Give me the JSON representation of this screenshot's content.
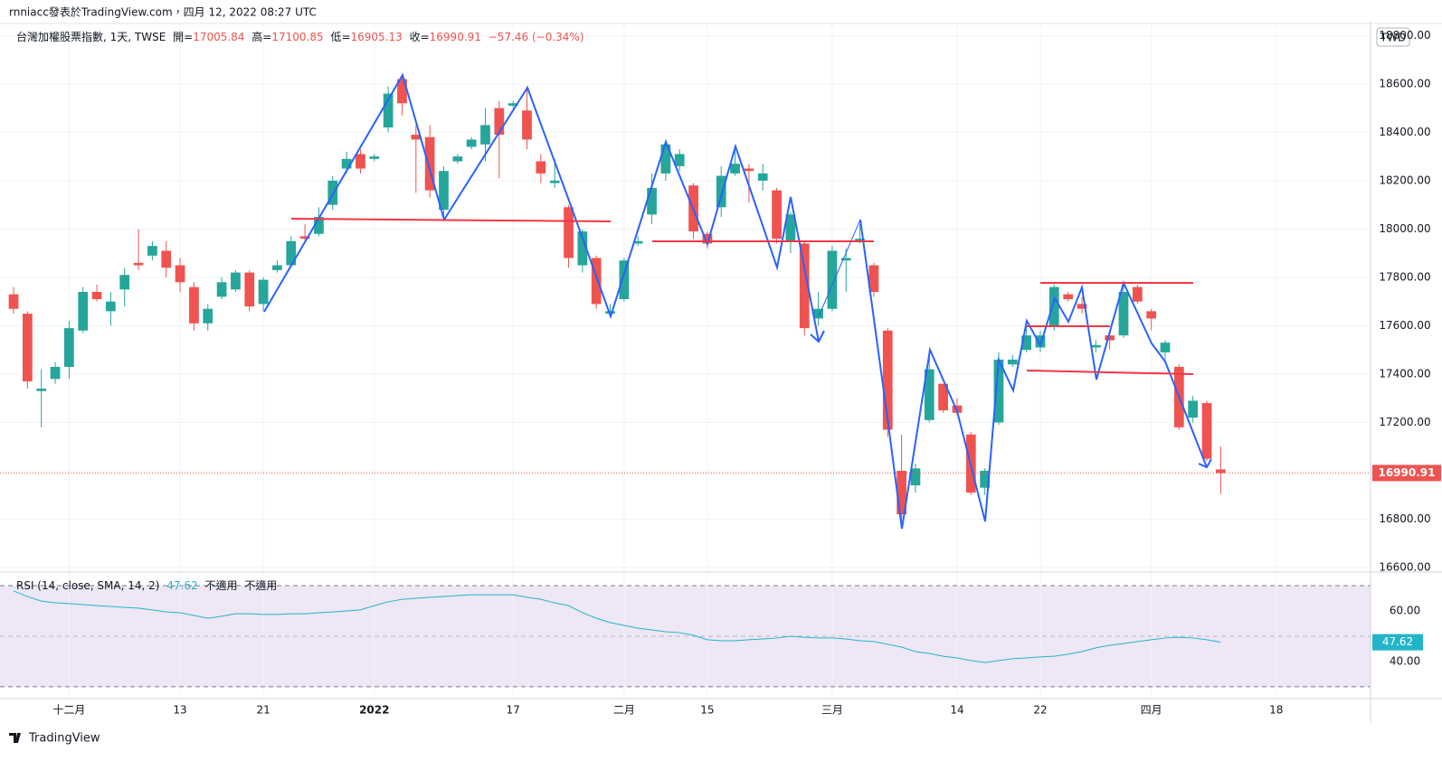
{
  "page": {
    "header": "rnniacc發表於TradingView.com，四月 12, 2022 08:27 UTC",
    "logo": "TradingView"
  },
  "chart_data": [
    {
      "type": "candlestick",
      "title": "台灣加權股票指數, 1天, TWSE",
      "ohlc_labels": [
        "開=",
        "高=",
        "低=",
        "收="
      ],
      "change_label": "−57.46 (−0.34%)",
      "currency": "TWD",
      "up_color": "#26a69a",
      "down_color": "#ef5350",
      "open": [
        17730,
        17650,
        17330,
        17380,
        17430,
        17580,
        17740,
        17660,
        17750,
        17860,
        17890,
        17910,
        17850,
        17760,
        17610,
        17720,
        17750,
        17820,
        17690,
        17830,
        17850,
        17970,
        17980,
        18100,
        18250,
        18310,
        18290,
        18420,
        18620,
        18390,
        18380,
        18080,
        18280,
        18340,
        18350,
        18500,
        18510,
        18490,
        18280,
        18190,
        18090,
        17850,
        17880,
        17650,
        17710,
        17940,
        18060,
        18230,
        18260,
        18180,
        17980,
        18090,
        18230,
        18250,
        18200,
        18160,
        17950,
        17940,
        17630,
        17670,
        17870,
        17950,
        17850,
        17580,
        17000,
        16940,
        17210,
        17360,
        17270,
        17150,
        16930,
        17200,
        17440,
        17500,
        17510,
        17600,
        17730,
        17690,
        17510,
        17560,
        17560,
        17760,
        17660,
        17490,
        17430,
        17220,
        17280,
        17005.84
      ],
      "high": [
        17760,
        17660,
        17420,
        17450,
        17620,
        17760,
        17770,
        17740,
        17840,
        18000,
        17950,
        17950,
        17880,
        17780,
        17690,
        17800,
        17830,
        17830,
        17800,
        17870,
        17970,
        18020,
        18090,
        18220,
        18320,
        18330,
        18310,
        18590,
        18630,
        18430,
        18430,
        18260,
        18310,
        18380,
        18500,
        18530,
        18530,
        18590,
        18310,
        18290,
        18100,
        18000,
        17890,
        17690,
        17880,
        17970,
        18230,
        18370,
        18330,
        18190,
        17990,
        18260,
        18340,
        18270,
        18270,
        18170,
        18070,
        17950,
        17740,
        17930,
        17920,
        18020,
        17860,
        17590,
        17150,
        17030,
        17490,
        17360,
        17300,
        17160,
        17010,
        17490,
        17480,
        17600,
        17580,
        17770,
        17740,
        17720,
        17540,
        17570,
        17770,
        17770,
        17670,
        17540,
        17440,
        17310,
        17290,
        17100.85
      ],
      "low": [
        17650,
        17340,
        17180,
        17360,
        17380,
        17570,
        17700,
        17600,
        17680,
        17830,
        17870,
        17800,
        17740,
        17580,
        17580,
        17710,
        17740,
        17660,
        17660,
        17820,
        17840,
        17950,
        17970,
        18080,
        18230,
        18230,
        18280,
        18400,
        18470,
        18150,
        18130,
        18040,
        18270,
        18330,
        18280,
        18210,
        18500,
        18330,
        18190,
        18170,
        17840,
        17820,
        17670,
        17640,
        17700,
        17930,
        18020,
        18200,
        18240,
        17960,
        17920,
        18050,
        18220,
        18110,
        18160,
        17940,
        17900,
        17560,
        17600,
        17660,
        17740,
        17940,
        17720,
        17140,
        16760,
        16910,
        17200,
        17240,
        17230,
        16900,
        16900,
        17190,
        17430,
        17490,
        17490,
        17580,
        17700,
        17650,
        17490,
        17500,
        17550,
        17690,
        17580,
        17460,
        17170,
        17200,
        17040,
        16905.13
      ],
      "close": [
        17670,
        17370,
        17340,
        17430,
        17590,
        17740,
        17710,
        17700,
        17810,
        17850,
        17930,
        17840,
        17780,
        17610,
        17670,
        17780,
        17820,
        17680,
        17790,
        17850,
        17950,
        17960,
        18050,
        18200,
        18290,
        18250,
        18300,
        18560,
        18520,
        18370,
        18160,
        18240,
        18300,
        18370,
        18430,
        18390,
        18520,
        18370,
        18230,
        18200,
        17880,
        17990,
        17690,
        17660,
        17870,
        17950,
        18170,
        18350,
        18310,
        17990,
        17940,
        18220,
        18270,
        18240,
        18230,
        17960,
        18060,
        17590,
        17670,
        17910,
        17880,
        17960,
        17740,
        17170,
        16820,
        17010,
        17420,
        17250,
        17240,
        16910,
        17000,
        17460,
        17460,
        17560,
        17560,
        17760,
        17710,
        17670,
        17520,
        17540,
        17740,
        17700,
        17630,
        17530,
        17180,
        17290,
        17050,
        16990.91
      ],
      "xlim": [
        -0.98,
        97.8
      ],
      "xticks": [
        {
          "value": 4,
          "label": "十二月"
        },
        {
          "value": 12,
          "label": "13"
        },
        {
          "value": 18,
          "label": "21"
        },
        {
          "value": 26,
          "label": "2022"
        },
        {
          "value": 36,
          "label": "17"
        },
        {
          "value": 44,
          "label": "二月"
        },
        {
          "value": 50,
          "label": "15"
        },
        {
          "value": 59,
          "label": "三月"
        },
        {
          "value": 68,
          "label": "14"
        },
        {
          "value": 74,
          "label": "22"
        },
        {
          "value": 82,
          "label": "四月"
        },
        {
          "value": 91,
          "label": "18"
        }
      ],
      "ylim": [
        16585,
        18835
      ],
      "yticks": [
        {
          "value": 16600,
          "label": "16600.00"
        },
        {
          "value": 16800,
          "label": "16800.00"
        },
        {
          "value": 17000,
          "label": "17000.00"
        },
        {
          "value": 17200,
          "label": "17200.00"
        },
        {
          "value": 17400,
          "label": "17400.00"
        },
        {
          "value": 17600,
          "label": "17600.00"
        },
        {
          "value": 17800,
          "label": "17800.00"
        },
        {
          "value": 18000,
          "label": "18000.00"
        },
        {
          "value": 18200,
          "label": "18200.00"
        },
        {
          "value": 18400,
          "label": "18400.00"
        },
        {
          "value": 18600,
          "label": "18600.00"
        },
        {
          "value": 18800,
          "label": "18800.00"
        }
      ],
      "grid": true
    },
    {
      "type": "line",
      "title": "RSI (14, close, SMA, 14, 2)",
      "notes": [
        "不適用",
        "不適用"
      ],
      "color": "#22b5c9",
      "values": [
        67.9,
        65.7,
        63.9,
        63.2,
        62.9,
        62.5,
        62.1,
        61.8,
        61.4,
        61.1,
        60.4,
        59.6,
        59.3,
        58.2,
        57.1,
        57.9,
        58.9,
        58.9,
        58.6,
        58.6,
        58.9,
        58.9,
        59.3,
        59.6,
        60.0,
        60.4,
        62.1,
        63.6,
        64.6,
        65.0,
        65.4,
        65.7,
        66.1,
        66.4,
        66.4,
        66.4,
        66.4,
        65.4,
        64.6,
        63.2,
        62.1,
        59.3,
        57.1,
        55.4,
        54.3,
        53.2,
        52.5,
        51.8,
        51.4,
        50.4,
        48.6,
        48.2,
        48.2,
        48.6,
        48.9,
        49.3,
        50.0,
        49.6,
        49.3,
        49.3,
        48.9,
        48.2,
        47.9,
        46.8,
        45.7,
        43.9,
        43.2,
        42.1,
        41.4,
        40.4,
        39.6,
        40.4,
        41.1,
        41.4,
        41.8,
        42.1,
        42.9,
        43.9,
        45.4,
        46.4,
        47.1,
        47.9,
        48.6,
        49.3,
        49.6,
        49.3,
        48.6,
        47.62
      ],
      "ylim": [
        26.4,
        74.3
      ],
      "yticks": [
        {
          "value": 40,
          "label": "40.00"
        },
        {
          "value": 60,
          "label": "60.00"
        }
      ],
      "band": [
        30,
        70
      ],
      "midline": 50,
      "band_color": "#ede7f6"
    }
  ]
}
